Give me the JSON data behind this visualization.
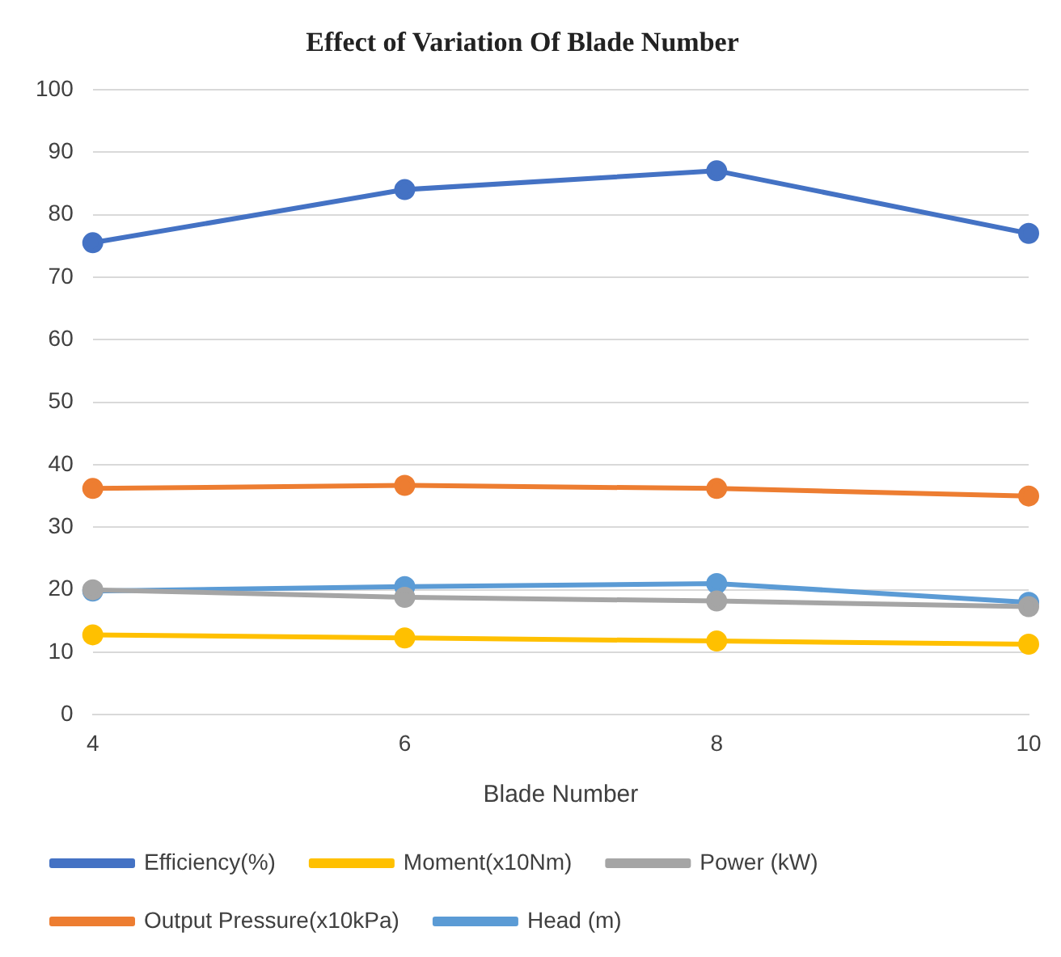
{
  "chart_data": {
    "type": "line",
    "title": "Effect of Variation Of Blade Number",
    "xlabel": "Blade Number",
    "categories": [
      "4",
      "6",
      "8",
      "10"
    ],
    "series": [
      {
        "name": "Head (m)",
        "color": "#5b9bd5",
        "values": [
          19.8,
          20.5,
          21,
          18
        ]
      },
      {
        "name": "Output Pressure(x10kPa)",
        "color": "#ed7d31",
        "values": [
          36.2,
          36.7,
          36.2,
          35
        ]
      },
      {
        "name": "Power (kW)",
        "color": "#a5a5a5",
        "values": [
          20,
          18.8,
          18.2,
          17.3
        ]
      },
      {
        "name": "Moment(x10Nm)",
        "color": "#ffc000",
        "values": [
          12.8,
          12.3,
          11.8,
          11.3
        ]
      },
      {
        "name": "Efficiency(%)",
        "color": "#4472c4",
        "values": [
          75.5,
          84,
          87,
          77
        ]
      }
    ],
    "ylim": [
      0,
      100
    ],
    "yticks": [
      0,
      10,
      20,
      30,
      40,
      50,
      60,
      70,
      80,
      90,
      100
    ],
    "grid": "y",
    "legend": "bottom",
    "marker": "circle",
    "line_style": "solid"
  }
}
